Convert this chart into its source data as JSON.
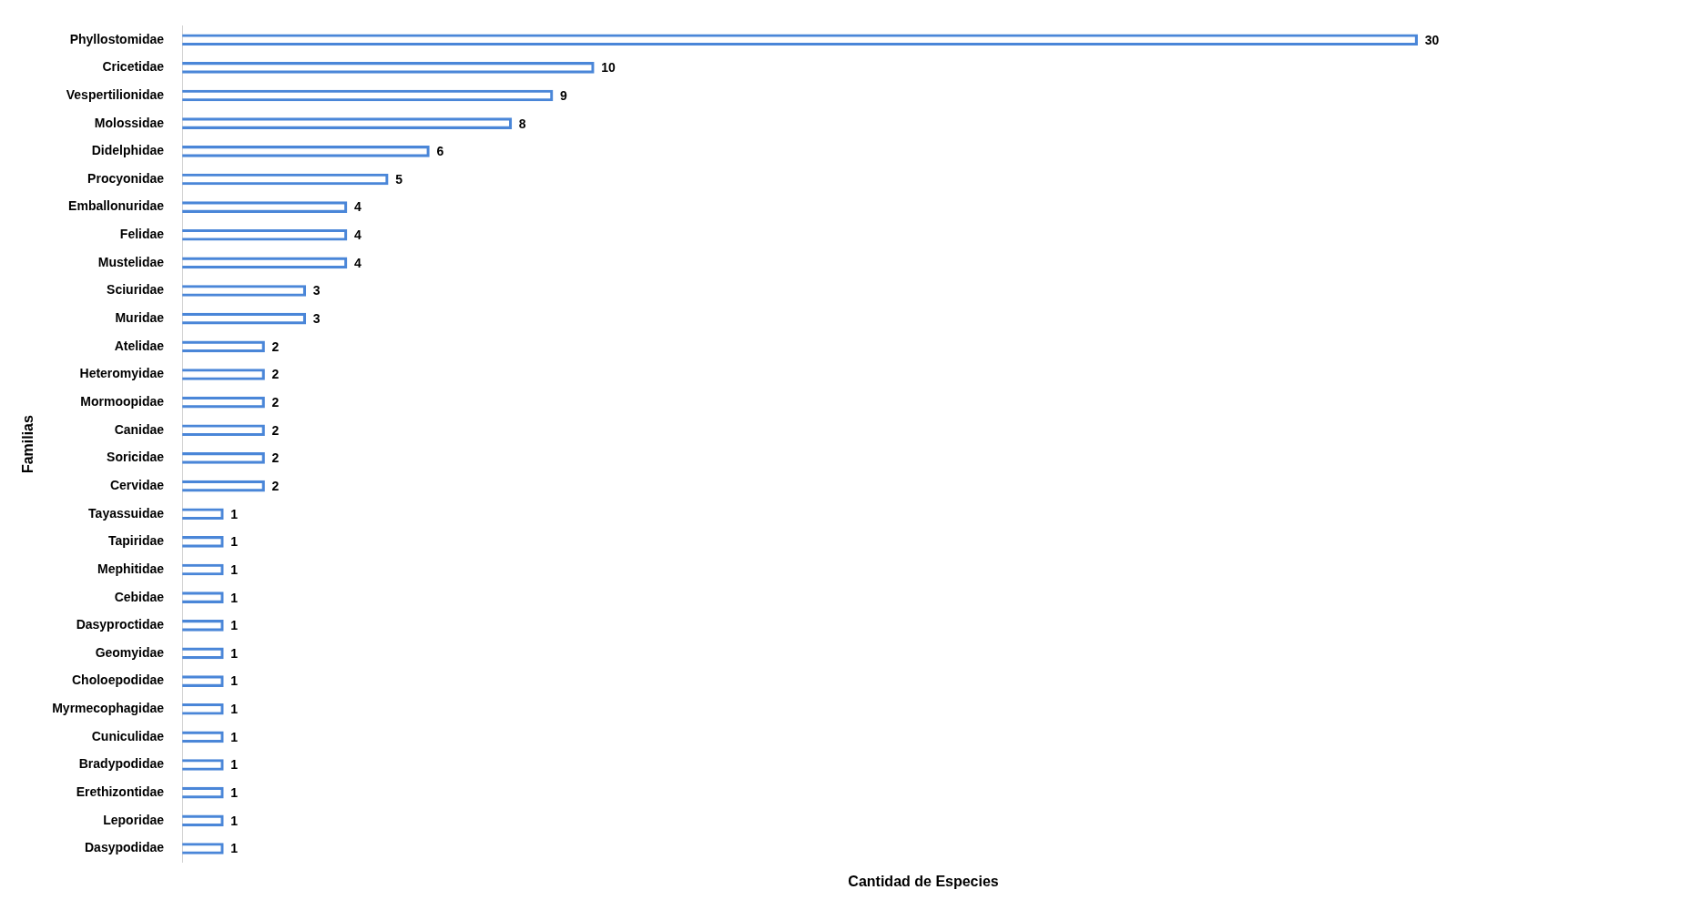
{
  "chart_data": {
    "type": "bar",
    "orientation": "horizontal",
    "xlabel": "Cantidad de Especies",
    "ylabel": "Familias",
    "categories": [
      "Phyllostomidae",
      "Cricetidae",
      "Vespertilionidae",
      "Molossidae",
      "Didelphidae",
      "Procyonidae",
      "Emballonuridae",
      "Felidae",
      "Mustelidae",
      "Sciuridae",
      "Muridae",
      "Atelidae",
      "Heteromyidae",
      "Mormoopidae",
      "Canidae",
      "Soricidae",
      "Cervidae",
      "Tayassuidae",
      "Tapiridae",
      "Mephitidae",
      "Cebidae",
      "Dasyproctidae",
      "Geomyidae",
      "Choloepodidae",
      "Myrmecophagidae",
      "Cuniculidae",
      "Bradypodidae",
      "Erethizontidae",
      "Leporidae",
      "Dasypodidae"
    ],
    "values": [
      30,
      10,
      9,
      8,
      6,
      5,
      4,
      4,
      4,
      3,
      3,
      2,
      2,
      2,
      2,
      2,
      2,
      1,
      1,
      1,
      1,
      1,
      1,
      1,
      1,
      1,
      1,
      1,
      1,
      1
    ],
    "color": "#4a86d8",
    "data_labels": true,
    "grid": false,
    "legend": false
  }
}
